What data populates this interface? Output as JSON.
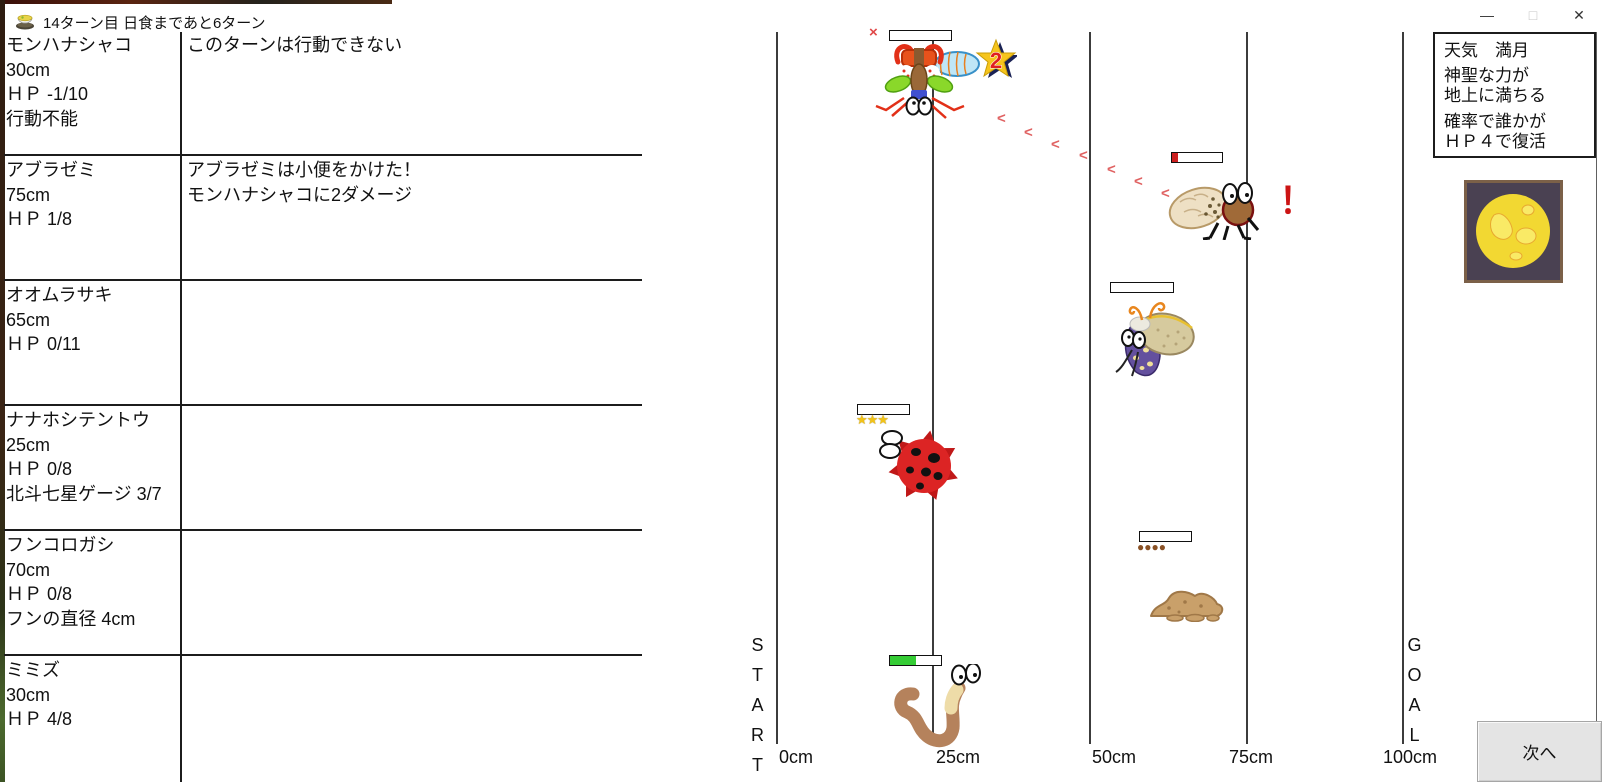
{
  "window": {
    "title": "14ターン目 日食まであと6ターン",
    "controls": {
      "minimize": "—",
      "maximize": "□",
      "close": "✕"
    }
  },
  "roster": {
    "rows": [
      {
        "name": "モンハナシャコ",
        "stats": [
          "30cm",
          "ＨＰ -1/10",
          "行動不能"
        ],
        "message": [
          "このターンは行動できない"
        ]
      },
      {
        "name": "アブラゼミ",
        "stats": [
          "75cm",
          "ＨＰ 1/8"
        ],
        "message": [
          "アブラゼミは小便をかけた！",
          "モンハナシャコに2ダメージ"
        ]
      },
      {
        "name": "オオムラサキ",
        "stats": [
          "65cm",
          "ＨＰ 0/11"
        ],
        "message": []
      },
      {
        "name": "ナナホシテントウ",
        "stats": [
          "25cm",
          "ＨＰ 0/8",
          "北斗七星ゲージ 3/7"
        ],
        "message": []
      },
      {
        "name": "フンコロガシ",
        "stats": [
          "70cm",
          "ＨＰ 0/8",
          "フンの直径 4cm"
        ],
        "message": []
      },
      {
        "name": "ミミズ",
        "stats": [
          "30cm",
          "ＨＰ 4/8"
        ],
        "message": []
      }
    ]
  },
  "track": {
    "start_label": "START",
    "goal_label": "GOAL",
    "ticks": [
      "0cm",
      "25cm",
      "50cm",
      "75cm",
      "100cm"
    ],
    "racers": [
      {
        "id": "mantis-shrimp",
        "name": "モンハナシャコ",
        "position_cm": 30,
        "hp_percent": 0,
        "badge": "2"
      },
      {
        "id": "cicada",
        "name": "アブラゼミ",
        "position_cm": 75,
        "hp_percent": 12.5,
        "hp_color": "#cc2020"
      },
      {
        "id": "butterfly",
        "name": "オオムラサキ",
        "position_cm": 65,
        "hp_percent": 0
      },
      {
        "id": "ladybug",
        "name": "ナナホシテントウ",
        "position_cm": 25,
        "hp_percent": 0,
        "gauge_stars": 3
      },
      {
        "id": "dung-beetle",
        "name": "フンコロガシ",
        "position_cm": 70,
        "hp_percent": 0,
        "dung_dots": 4
      },
      {
        "id": "earthworm",
        "name": "ミミズ",
        "position_cm": 30,
        "hp_percent": 50,
        "hp_color": "#35cc35"
      }
    ]
  },
  "effects": {
    "ko_mark": "×",
    "alert_mark": "！",
    "star_badge_value": "2",
    "trail_glyph": "<",
    "trail_points": [
      [
        997,
        110
      ],
      [
        1024,
        124
      ],
      [
        1051,
        136
      ],
      [
        1079,
        147
      ],
      [
        1107,
        161
      ],
      [
        1134,
        173
      ],
      [
        1161,
        185
      ]
    ]
  },
  "weather": {
    "lines": [
      "天気　満月",
      "神聖な力が",
      "地上に満ちる",
      "確率で誰かが",
      "ＨＰ４で復活"
    ]
  },
  "next_button": {
    "label": "次へ"
  },
  "colors": {
    "hp_green": "#35cc35",
    "hp_red": "#cc2020",
    "star_gold": "#f2c318",
    "track_line": "#3c3c3c",
    "moon_yellow": "#f2d832",
    "moon_patch": "#f9ea66",
    "moon_background": "#4a4152",
    "alert_red": "#cc1414"
  }
}
